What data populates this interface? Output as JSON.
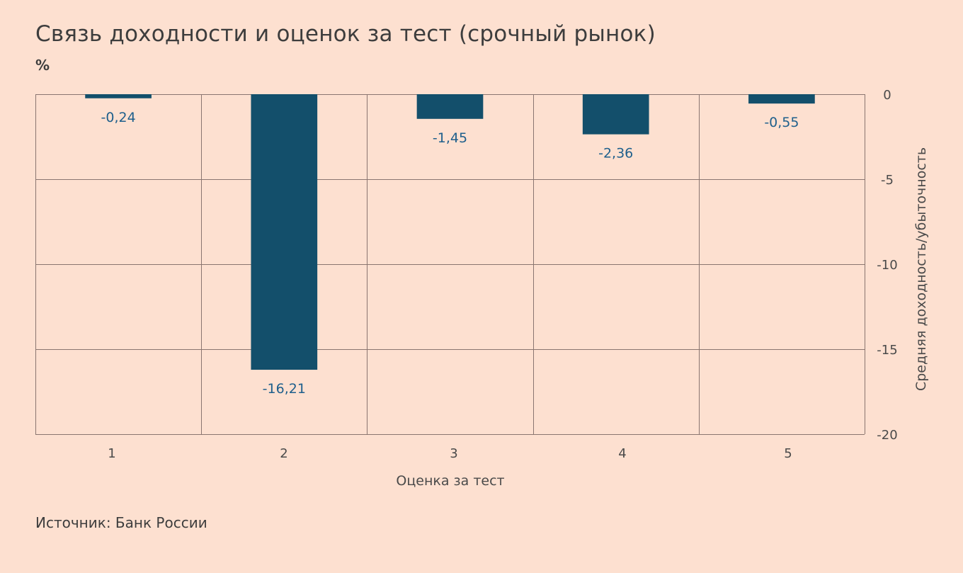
{
  "title": "Связь доходности и оценок за тест (срочный рынок)",
  "unit": "%",
  "source": "Источник: Банк России",
  "colors": {
    "background": "#fde0d0",
    "bar": "#134f6b",
    "data_label": "#1e5f8c",
    "grid": "#8a7570"
  },
  "chart_data": {
    "type": "bar",
    "title": "Связь доходности и оценок за тест (срочный рынок)",
    "xlabel": "Оценка за тест",
    "ylabel": "Средняя доходность/убыточность",
    "y_axis_position": "right",
    "categories": [
      "1",
      "2",
      "3",
      "4",
      "5"
    ],
    "values": [
      -0.24,
      -16.21,
      -1.45,
      -2.36,
      -0.55
    ],
    "data_labels": [
      "-0,24",
      "-16,21",
      "-1,45",
      "-2,36",
      "-0,55"
    ],
    "ylim": [
      -20,
      0
    ],
    "yticks": [
      0,
      -5,
      -10,
      -15,
      -20
    ],
    "ytick_labels": [
      "0",
      "-5",
      "-10",
      "-15",
      "-20"
    ],
    "grid": true
  }
}
